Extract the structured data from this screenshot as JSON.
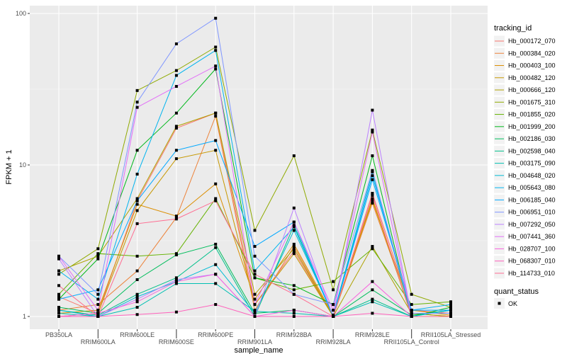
{
  "chart_data": {
    "type": "line",
    "title": "",
    "xlabel": "sample_name",
    "ylabel": "FPKM + 1",
    "y_scale": "log10",
    "ylim": [
      0.95,
      105
    ],
    "y_ticks": [
      1,
      10,
      100
    ],
    "y_tick_labels": [
      "1",
      "10",
      "100"
    ],
    "grid": true,
    "legend_position": "right",
    "categories": [
      "PB350LA",
      "RRIM600LA",
      "RRIM600LE",
      "RRIM600SE",
      "RRIM600PE",
      "RRIM901LA",
      "RRIM928BA",
      "RRIM928LA",
      "RRIM928LE",
      "RRII105LA_Control",
      "RRII105LA_Stressed"
    ],
    "legend_title": "tracking_id",
    "series": [
      {
        "name": "Hb_000172_070",
        "color": "#F8766D",
        "values": [
          1.35,
          1.05,
          5.8,
          17.5,
          22,
          1.2,
          2.7,
          1.0,
          6.5,
          1.1,
          1.05
        ]
      },
      {
        "name": "Hb_000384_020",
        "color": "#EC8239",
        "values": [
          1.1,
          1.2,
          2.0,
          4.5,
          21,
          1.1,
          2.9,
          1.0,
          5.6,
          1.05,
          1.0
        ]
      },
      {
        "name": "Hb_000403_100",
        "color": "#DB8E00",
        "values": [
          1.05,
          1.1,
          5.5,
          4.6,
          7.5,
          1.3,
          3.0,
          1.02,
          5.8,
          1.1,
          1.02
        ]
      },
      {
        "name": "Hb_000482_120",
        "color": "#C79800",
        "values": [
          1.0,
          1.05,
          5.0,
          11,
          12.5,
          1.2,
          2.6,
          1.0,
          6.0,
          1.0,
          1.0
        ]
      },
      {
        "name": "Hb_000666_120",
        "color": "#AEA200",
        "values": [
          2.0,
          2.5,
          6.0,
          18,
          22,
          1.4,
          2.8,
          1.0,
          2.9,
          1.05,
          1.0
        ]
      },
      {
        "name": "Hb_001675_310",
        "color": "#8FAA00",
        "values": [
          1.9,
          2.8,
          31,
          42,
          60,
          3.7,
          11.5,
          1.5,
          17,
          1.4,
          1.15
        ]
      },
      {
        "name": "Hb_001855_020",
        "color": "#64B200",
        "values": [
          1.4,
          2.6,
          2.5,
          2.6,
          6.0,
          1.8,
          1.5,
          1.7,
          2.8,
          1.2,
          1.25
        ]
      },
      {
        "name": "Hb_001999_200",
        "color": "#00B81B",
        "values": [
          1.3,
          2.4,
          12.5,
          22,
          43,
          1.8,
          1.6,
          1.2,
          11.5,
          1.0,
          1.15
        ]
      },
      {
        "name": "Hb_002186_030",
        "color": "#00BD5C",
        "values": [
          1.15,
          1.05,
          1.75,
          2.55,
          3.0,
          1.05,
          1.1,
          1.0,
          1.5,
          1.02,
          1.1
        ]
      },
      {
        "name": "Hb_002598_040",
        "color": "#00C08B",
        "values": [
          1.1,
          1.02,
          1.4,
          1.8,
          2.85,
          1.0,
          4.0,
          1.0,
          1.3,
          1.0,
          1.0
        ]
      },
      {
        "name": "Hb_003175_090",
        "color": "#00BFB2",
        "values": [
          1.05,
          1.0,
          1.15,
          1.65,
          1.65,
          1.08,
          1.05,
          1.0,
          1.25,
          1.0,
          1.1
        ]
      },
      {
        "name": "Hb_004648_020",
        "color": "#00BBD4",
        "values": [
          1.1,
          1.0,
          1.35,
          1.7,
          2.2,
          1.05,
          3.7,
          1.02,
          9.0,
          1.0,
          1.1
        ]
      },
      {
        "name": "Hb_005643_080",
        "color": "#00B4EF",
        "values": [
          2.0,
          1.3,
          8.7,
          39,
          57,
          2.0,
          3.9,
          1.0,
          8.5,
          1.1,
          1.2
        ]
      },
      {
        "name": "Hb_006185_040",
        "color": "#00A8FF",
        "values": [
          1.3,
          1.5,
          5.8,
          12.5,
          14.5,
          2.9,
          4.2,
          1.0,
          8.0,
          1.1,
          1.1
        ]
      },
      {
        "name": "Hb_006951_010",
        "color": "#7F96FF",
        "values": [
          2.5,
          1.4,
          26,
          63,
          93,
          2.5,
          1.4,
          1.2,
          9.2,
          1.05,
          1.05
        ]
      },
      {
        "name": "Hb_007292_050",
        "color": "#BC81FF",
        "values": [
          2.4,
          1.0,
          1.3,
          1.75,
          1.9,
          1.0,
          5.2,
          1.0,
          23,
          1.0,
          1.0
        ]
      },
      {
        "name": "Hb_007441_360",
        "color": "#E26EF7",
        "values": [
          2.5,
          1.1,
          24,
          33,
          45,
          1.2,
          4.2,
          1.1,
          16.5,
          1.0,
          1.0
        ]
      },
      {
        "name": "Hb_028707_100",
        "color": "#F863DF",
        "values": [
          1.0,
          1.05,
          1.25,
          1.7,
          1.9,
          1.0,
          1.1,
          1.0,
          1.7,
          1.0,
          1.0
        ]
      },
      {
        "name": "Hb_068307_010",
        "color": "#FF62BC",
        "values": [
          1.0,
          1.0,
          1.03,
          1.07,
          1.2,
          1.0,
          1.0,
          1.0,
          1.05,
          1.0,
          1.0
        ]
      },
      {
        "name": "Hb_114733_010",
        "color": "#FF6C91",
        "values": [
          1.6,
          1.0,
          4.1,
          4.4,
          5.8,
          1.9,
          1.4,
          1.0,
          6.3,
          1.0,
          1.0
        ]
      }
    ],
    "shape_legend_title": "quant_status",
    "shape_legend_items": [
      "OK"
    ]
  }
}
